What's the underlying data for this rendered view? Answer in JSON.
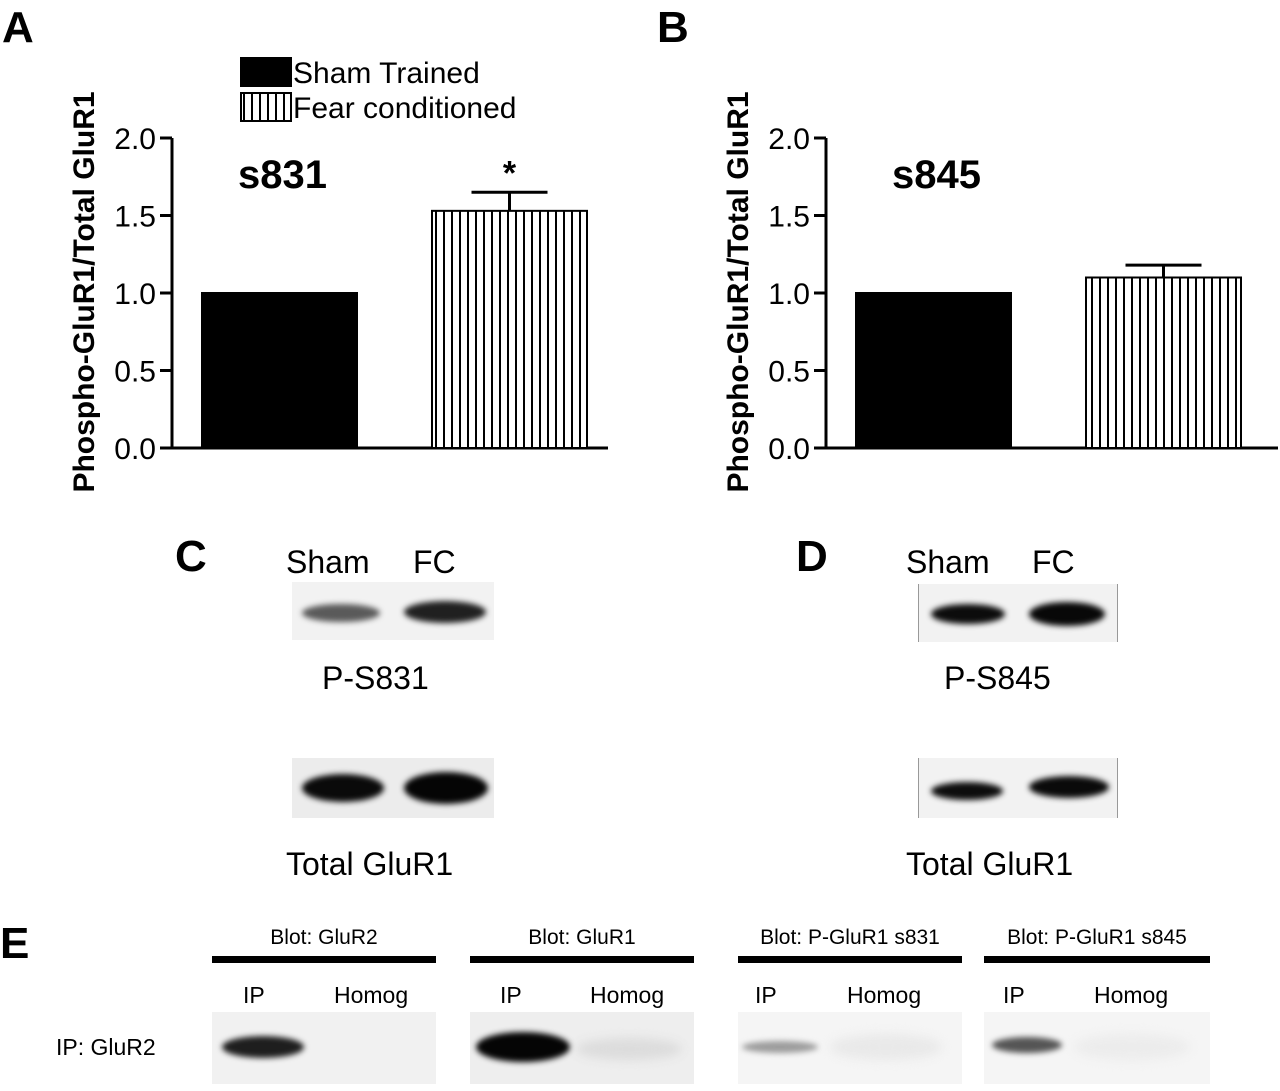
{
  "panels": {
    "a": "A",
    "b": "B",
    "c": "C",
    "d": "D",
    "e": "E"
  },
  "colors": {
    "sham_fill": "#000000",
    "fc_fill": "#ffffff",
    "fc_hatch": "#000000",
    "axis": "#000000"
  },
  "chart_data": [
    {
      "type": "bar",
      "panel": "A",
      "annotation": "s831",
      "ylabel": "Phospho-GluR1/Total GluR1",
      "ylim": [
        0,
        2.0
      ],
      "yticks": [
        "0.0",
        "0.5",
        "1.0",
        "1.5",
        "2.0"
      ],
      "legend": {
        "placement": "top",
        "entries": [
          "Sham Trained",
          "Fear conditioned"
        ]
      },
      "series": [
        {
          "name": "Sham Trained",
          "value": 1.0,
          "error": 0
        },
        {
          "name": "Fear conditioned",
          "value": 1.53,
          "error": 0.12
        }
      ],
      "significance": "*"
    },
    {
      "type": "bar",
      "panel": "B",
      "annotation": "s845",
      "ylabel": "Phospho-GluR1/Total GluR1",
      "ylim": [
        0,
        2.0
      ],
      "yticks": [
        "0.0",
        "0.5",
        "1.0",
        "1.5",
        "2.0"
      ],
      "series": [
        {
          "name": "Sham Trained",
          "value": 1.0,
          "error": 0
        },
        {
          "name": "Fear conditioned",
          "value": 1.1,
          "error": 0.08
        }
      ]
    }
  ],
  "blot_c": {
    "lanes": [
      "Sham",
      "FC"
    ],
    "top_label": "P-S831",
    "bottom_label": "Total GluR1"
  },
  "blot_d": {
    "lanes": [
      "Sham",
      "FC"
    ],
    "top_label": "P-S845",
    "bottom_label": "Total GluR1"
  },
  "blot_e": {
    "row_label": "IP: GluR2",
    "groups": [
      {
        "title": "Blot: GluR2",
        "ip": "IP",
        "homog": "Homog"
      },
      {
        "title": "Blot: GluR1",
        "ip": "IP",
        "homog": "Homog"
      },
      {
        "title": "Blot: P-GluR1 s831",
        "ip": "IP",
        "homog": "Homog"
      },
      {
        "title": "Blot: P-GluR1 s845",
        "ip": "IP",
        "homog": "Homog"
      }
    ]
  }
}
